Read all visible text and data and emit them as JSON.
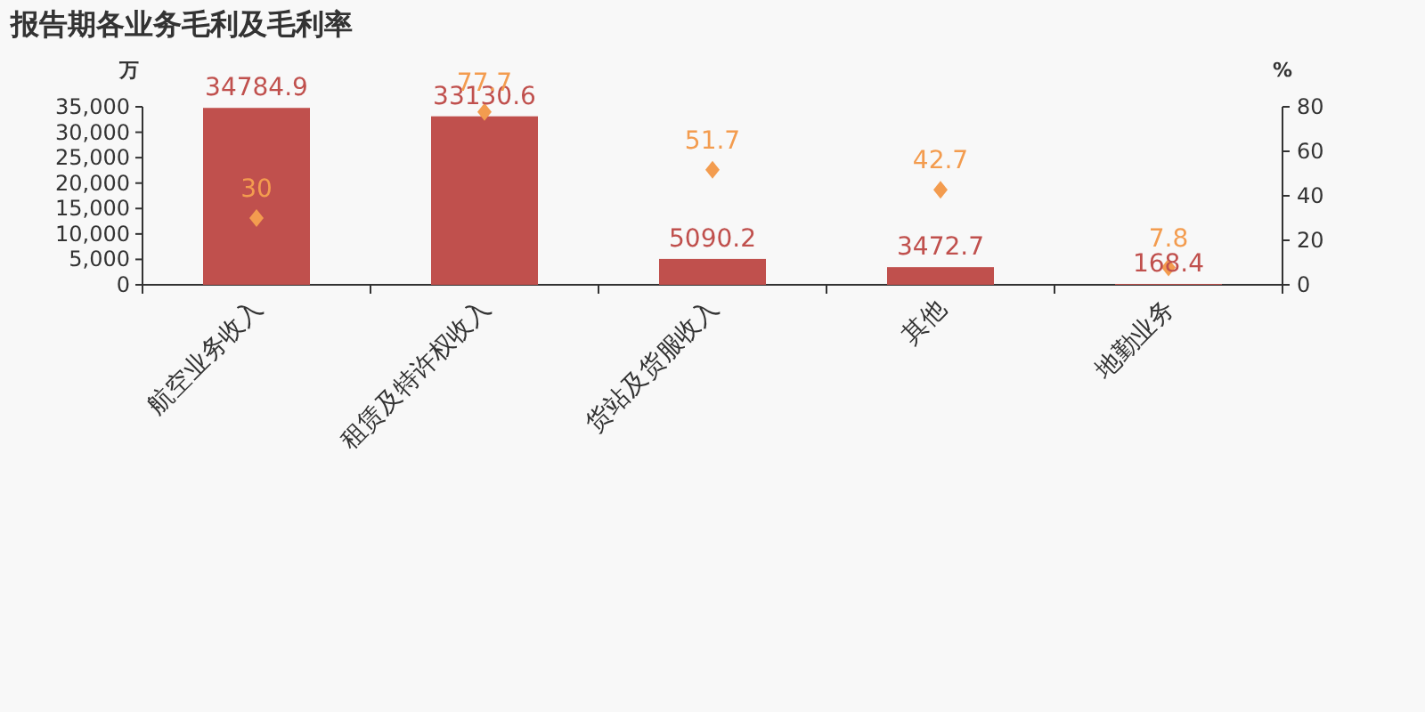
{
  "chart_data": {
    "type": "bar",
    "title": "报告期各业务毛利及毛利率",
    "ylabel": "万",
    "y2label": "%",
    "categories": [
      "航空业务收入",
      "租赁及特许权收入",
      "货站及货服收入",
      "其他",
      "地勤业务"
    ],
    "series": [
      {
        "color": "#c0504d",
        "values": [
          34784.9,
          33130.6,
          5090.2,
          3472.7,
          168.4
        ]
      },
      {
        "type": "scatter",
        "axis": "y2",
        "color": "#f39c4f",
        "values": [
          30,
          77.7,
          51.7,
          42.7,
          7.8
        ]
      }
    ],
    "ylim": [
      0,
      35000
    ],
    "yticks": [
      0,
      {
        "value": 5000,
        "label": "5,000"
      },
      {
        "value": 10000,
        "label": "10,000"
      },
      {
        "value": 15000,
        "label": "15,000"
      },
      {
        "value": 20000,
        "label": "20,000"
      },
      {
        "value": 25000,
        "label": "25,000"
      },
      {
        "value": 30000,
        "label": "30,000"
      },
      {
        "value": 35000,
        "label": "35,000"
      }
    ],
    "y2lim": [
      0,
      80
    ],
    "y2ticks": [
      0,
      20,
      40,
      60,
      80
    ],
    "marker": "diamond",
    "data_labels": true,
    "grid": false
  }
}
